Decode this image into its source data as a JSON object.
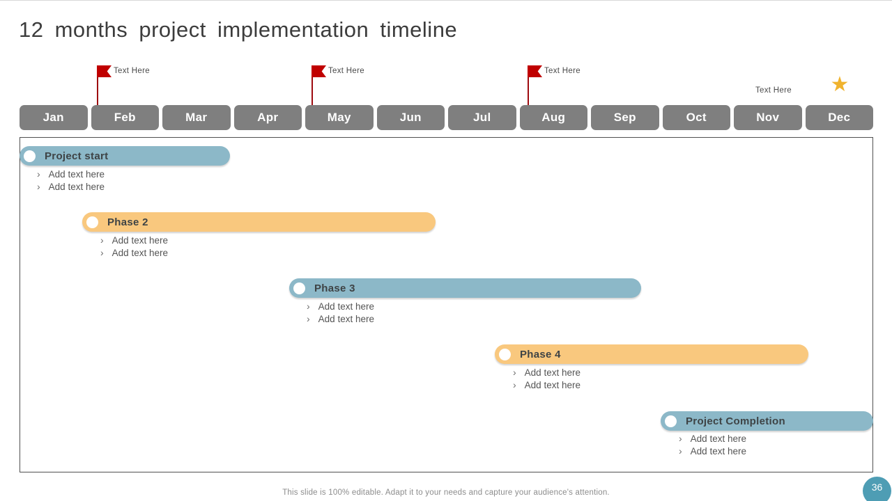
{
  "slide": {
    "title": "12 months project implementation timeline",
    "footer": "This slide is 100% editable. Adapt it to your needs and capture your audience's attention.",
    "page_number": "36"
  },
  "months": [
    "Jan",
    "Feb",
    "Mar",
    "Apr",
    "May",
    "Jun",
    "Jul",
    "Aug",
    "Sep",
    "Oct",
    "Nov",
    "Dec"
  ],
  "markers": {
    "flags": [
      {
        "label": "Text Here",
        "month": "Feb"
      },
      {
        "label": "Text Here",
        "month": "May"
      },
      {
        "label": "Text Here",
        "month": "Aug"
      }
    ],
    "text_label": {
      "label": "Text Here",
      "month": "Nov"
    },
    "star": {
      "glyph": "★",
      "month": "Dec"
    }
  },
  "tasks": [
    {
      "label": "Project start",
      "color": "#8CB8C8",
      "approx_span": "Jan–Mar",
      "bullets": [
        "Add text here",
        "Add text here"
      ]
    },
    {
      "label": "Phase 2",
      "color": "#F9C87E",
      "approx_span": "Feb–Jun",
      "bullets": [
        "Add text here",
        "Add text here"
      ]
    },
    {
      "label": "Phase 3",
      "color": "#8CB8C8",
      "approx_span": "Apr–Sep",
      "bullets": [
        "Add text here",
        "Add text here"
      ]
    },
    {
      "label": "Phase 4",
      "color": "#F9C87E",
      "approx_span": "Jul–Dec",
      "bullets": [
        "Add text here",
        "Add text here"
      ]
    },
    {
      "label": "Project Completion",
      "color": "#8CB8C8",
      "approx_span": "Oct–Dec",
      "bullets": [
        "Add text here",
        "Add text here"
      ]
    }
  ],
  "ui": {
    "bullet_marker": "›"
  },
  "colors": {
    "bar_blue": "#8CB8C8",
    "bar_orange": "#F9C87E",
    "month_tab_gray": "#7F7F7F",
    "flag_red": "#C00000",
    "star_gold": "#F0B32E",
    "page_badge_teal": "#4E9DB4",
    "title_text": "#3C3C3C"
  }
}
